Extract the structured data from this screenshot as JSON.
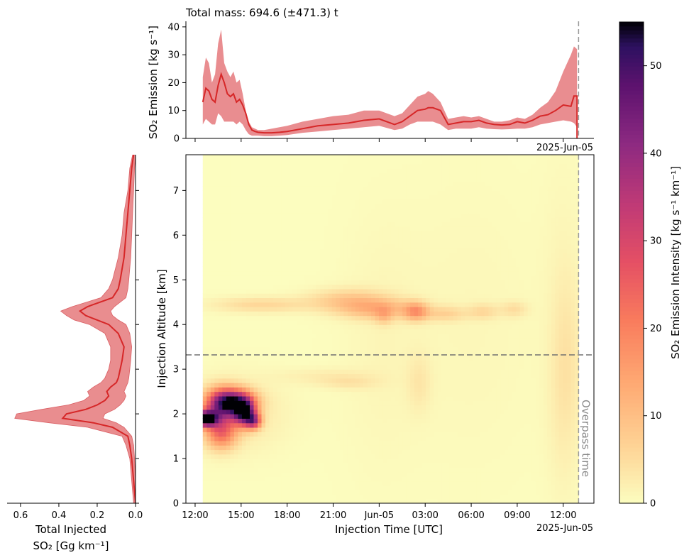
{
  "chart_data": [
    {
      "id": "top",
      "type": "area",
      "title": "Total mass: 694.6 (±471.3) t",
      "ylabel": "SO₂ Emission [kg s⁻¹]",
      "ylim": [
        0,
        42
      ],
      "yticks": [
        "0",
        "10",
        "20",
        "30",
        "40"
      ],
      "date_label": "2025-Jun-05",
      "x_hours": [
        0.5,
        0.7,
        0.9,
        1.1,
        1.3,
        1.5,
        1.7,
        1.9,
        2.1,
        2.3,
        2.5,
        2.7,
        2.9,
        3.1,
        3.3,
        3.5,
        3.7,
        3.9,
        4.1,
        4.5,
        5,
        5.5,
        6,
        7,
        8,
        9,
        10,
        11,
        12,
        13,
        13.5,
        14,
        14.5,
        15,
        15.2,
        15.5,
        16,
        16.5,
        17,
        17.5,
        18,
        18.5,
        19,
        19.5,
        20,
        20.5,
        21,
        21.5,
        22,
        22.5,
        23,
        23.5,
        24,
        24.5,
        24.7,
        24.9
      ],
      "mean": [
        13,
        18,
        17,
        14,
        13,
        19,
        23,
        20,
        16,
        15,
        16,
        13,
        14,
        12,
        9,
        5,
        3,
        2.5,
        2.2,
        2,
        2,
        2.2,
        2.5,
        3.5,
        4.5,
        5,
        5.5,
        6.5,
        7,
        5,
        6,
        8,
        10,
        10.5,
        11,
        11,
        10,
        5,
        5.5,
        6,
        6,
        6.5,
        5.5,
        5,
        4.8,
        5,
        6,
        5.5,
        6.5,
        8,
        8.5,
        10,
        12,
        11.5,
        15.2,
        15.2
      ],
      "upper": [
        22,
        29,
        27,
        20,
        23,
        34,
        39,
        27,
        24,
        22,
        24,
        20,
        21,
        16,
        10,
        6,
        4,
        3.5,
        3,
        3,
        3.5,
        4,
        4.5,
        6,
        7,
        8,
        8.5,
        10,
        10,
        8,
        9,
        12,
        15,
        16,
        17,
        16,
        13,
        7,
        7.5,
        8,
        7.5,
        8,
        7,
        6,
        6,
        6.5,
        7.5,
        7,
        8.5,
        11,
        13,
        17,
        24,
        30,
        33,
        32
      ],
      "lower": [
        5,
        7,
        6,
        5,
        5,
        9,
        8,
        6,
        6,
        6,
        6,
        5,
        6,
        5,
        3,
        1.5,
        1,
        1,
        1,
        0.8,
        0.8,
        1,
        1.2,
        2,
        2.5,
        3,
        3.5,
        4,
        4.5,
        3,
        3.5,
        5,
        6,
        6,
        6,
        6,
        5,
        3,
        3.5,
        3.5,
        3.5,
        4,
        3.5,
        3.3,
        3.2,
        3.3,
        3.5,
        3.5,
        4,
        5,
        5.5,
        6,
        6.5,
        6,
        5.5,
        4
      ],
      "end_point": [
        24.9,
        0
      ],
      "overpass_hour": 25.0,
      "line_color": "#d62728",
      "band_color": "#e8878a"
    },
    {
      "id": "left",
      "type": "area",
      "xlabel": "Total Injected SO₂ [Gg km⁻¹]",
      "xlabel_line1": "Total Injected",
      "xlabel_line2": "SO₂ [Gg km⁻¹]",
      "xlim": [
        0.67,
        0
      ],
      "xticks": [
        "0.6",
        "0.4",
        "0.2",
        "0.0"
      ],
      "altitude": [
        0,
        0.5,
        1,
        1.3,
        1.5,
        1.7,
        1.8,
        1.9,
        2.0,
        2.1,
        2.2,
        2.3,
        2.4,
        2.5,
        2.6,
        2.7,
        2.8,
        3.0,
        3.2,
        3.5,
        3.8,
        4.0,
        4.1,
        4.2,
        4.3,
        4.4,
        4.6,
        4.8,
        5.0,
        5.5,
        6,
        6.5,
        7,
        7.5,
        7.8
      ],
      "mean": [
        0,
        0.01,
        0.02,
        0.03,
        0.04,
        0.12,
        0.22,
        0.38,
        0.36,
        0.26,
        0.2,
        0.16,
        0.14,
        0.15,
        0.13,
        0.1,
        0.09,
        0.08,
        0.07,
        0.06,
        0.09,
        0.14,
        0.2,
        0.26,
        0.29,
        0.25,
        0.12,
        0.09,
        0.08,
        0.06,
        0.05,
        0.04,
        0.03,
        0.02,
        0.01
      ],
      "upper": [
        0.01,
        0.02,
        0.03,
        0.05,
        0.07,
        0.25,
        0.45,
        0.63,
        0.62,
        0.49,
        0.35,
        0.27,
        0.24,
        0.25,
        0.22,
        0.18,
        0.16,
        0.14,
        0.13,
        0.13,
        0.16,
        0.24,
        0.32,
        0.36,
        0.39,
        0.33,
        0.18,
        0.14,
        0.12,
        0.09,
        0.07,
        0.06,
        0.04,
        0.03,
        0.015
      ],
      "lower": [
        0,
        0,
        0.005,
        0.01,
        0.02,
        0.06,
        0.1,
        0.17,
        0.16,
        0.11,
        0.08,
        0.06,
        0.05,
        0.06,
        0.05,
        0.04,
        0.035,
        0.03,
        0.025,
        0.02,
        0.03,
        0.05,
        0.09,
        0.12,
        0.13,
        0.11,
        0.05,
        0.04,
        0.035,
        0.025,
        0.02,
        0.015,
        0.01,
        0.005,
        0
      ]
    },
    {
      "id": "main",
      "type": "heatmap",
      "xlabel": "Injection Time [UTC]",
      "ylabel": "Injection Altitude [km]",
      "x_range_hours": [
        -0.6,
        26.0
      ],
      "data_extent_hours": [
        0.5,
        25.0
      ],
      "ylim": [
        0,
        7.8
      ],
      "yticks": [
        "0",
        "1",
        "2",
        "3",
        "4",
        "5",
        "6",
        "7"
      ],
      "xtick_hours": [
        0,
        3,
        6,
        9,
        12,
        15,
        18,
        21,
        24
      ],
      "xtick_labels": [
        "12:00",
        "15:00",
        "18:00",
        "21:00",
        "Jun-05",
        "03:00",
        "06:00",
        "09:00",
        "12:00"
      ],
      "date_label": "2025-Jun-05",
      "reference_altitude_km": 3.32,
      "overpass_hour": 25.0,
      "overpass_label": "Overpass time",
      "blobs": [
        {
          "t": 0.7,
          "z": 1.9,
          "st": 0.5,
          "sz": 0.12,
          "v": 55
        },
        {
          "t": 1.8,
          "z": 2.2,
          "st": 0.8,
          "sz": 0.25,
          "v": 34
        },
        {
          "t": 1.7,
          "z": 1.6,
          "st": 0.7,
          "sz": 0.25,
          "v": 22
        },
        {
          "t": 3.2,
          "z": 2.05,
          "st": 0.5,
          "sz": 0.2,
          "v": 46
        },
        {
          "t": 2.6,
          "z": 2.3,
          "st": 0.9,
          "sz": 0.18,
          "v": 28
        },
        {
          "t": 3.8,
          "z": 1.85,
          "st": 0.35,
          "sz": 0.12,
          "v": 30
        },
        {
          "t": 2.6,
          "z": 2.0,
          "st": 2.2,
          "sz": 0.55,
          "v": 4
        },
        {
          "t": 4.3,
          "z": 4.45,
          "st": 2.2,
          "sz": 0.12,
          "v": 6
        },
        {
          "t": 10.0,
          "z": 4.55,
          "st": 1.8,
          "sz": 0.18,
          "v": 8
        },
        {
          "t": 12.0,
          "z": 4.35,
          "st": 1.7,
          "sz": 0.16,
          "v": 10
        },
        {
          "t": 14.4,
          "z": 4.3,
          "st": 0.55,
          "sz": 0.14,
          "v": 14
        },
        {
          "t": 12.3,
          "z": 4.2,
          "st": 0.4,
          "sz": 0.14,
          "v": 6
        },
        {
          "t": 16.3,
          "z": 4.25,
          "st": 1.0,
          "sz": 0.12,
          "v": 6
        },
        {
          "t": 18.8,
          "z": 4.3,
          "st": 0.7,
          "sz": 0.12,
          "v": 5
        },
        {
          "t": 20.8,
          "z": 4.35,
          "st": 0.6,
          "sz": 0.12,
          "v": 4.5
        },
        {
          "t": 8.5,
          "z": 2.85,
          "st": 2.2,
          "sz": 0.13,
          "v": 2.5
        },
        {
          "t": 10.0,
          "z": 2.7,
          "st": 1.3,
          "sz": 0.1,
          "v": 3
        },
        {
          "t": 14.6,
          "z": 2.7,
          "st": 0.55,
          "sz": 0.45,
          "v": 3
        },
        {
          "t": 12.0,
          "z": 3.5,
          "st": 1.8,
          "sz": 2.0,
          "v": 1
        },
        {
          "t": 18.0,
          "z": 4.0,
          "st": 3.5,
          "sz": 2.5,
          "v": 0.9
        },
        {
          "t": 24.2,
          "z": 3.3,
          "st": 0.7,
          "sz": 1.3,
          "v": 3
        },
        {
          "t": 24.0,
          "z": 1.8,
          "st": 0.8,
          "sz": 1.4,
          "v": 1.5
        },
        {
          "t": 24.0,
          "z": 5.5,
          "st": 1.0,
          "sz": 2.0,
          "v": 0.8
        }
      ]
    },
    {
      "id": "colorbar",
      "type": "colorbar",
      "label": "SO₂ Emission Intensity [kg s⁻¹ km⁻¹]",
      "range": [
        0,
        55
      ],
      "ticks": [
        "0",
        "10",
        "20",
        "30",
        "40",
        "50"
      ],
      "colormap": "magma_r"
    }
  ]
}
